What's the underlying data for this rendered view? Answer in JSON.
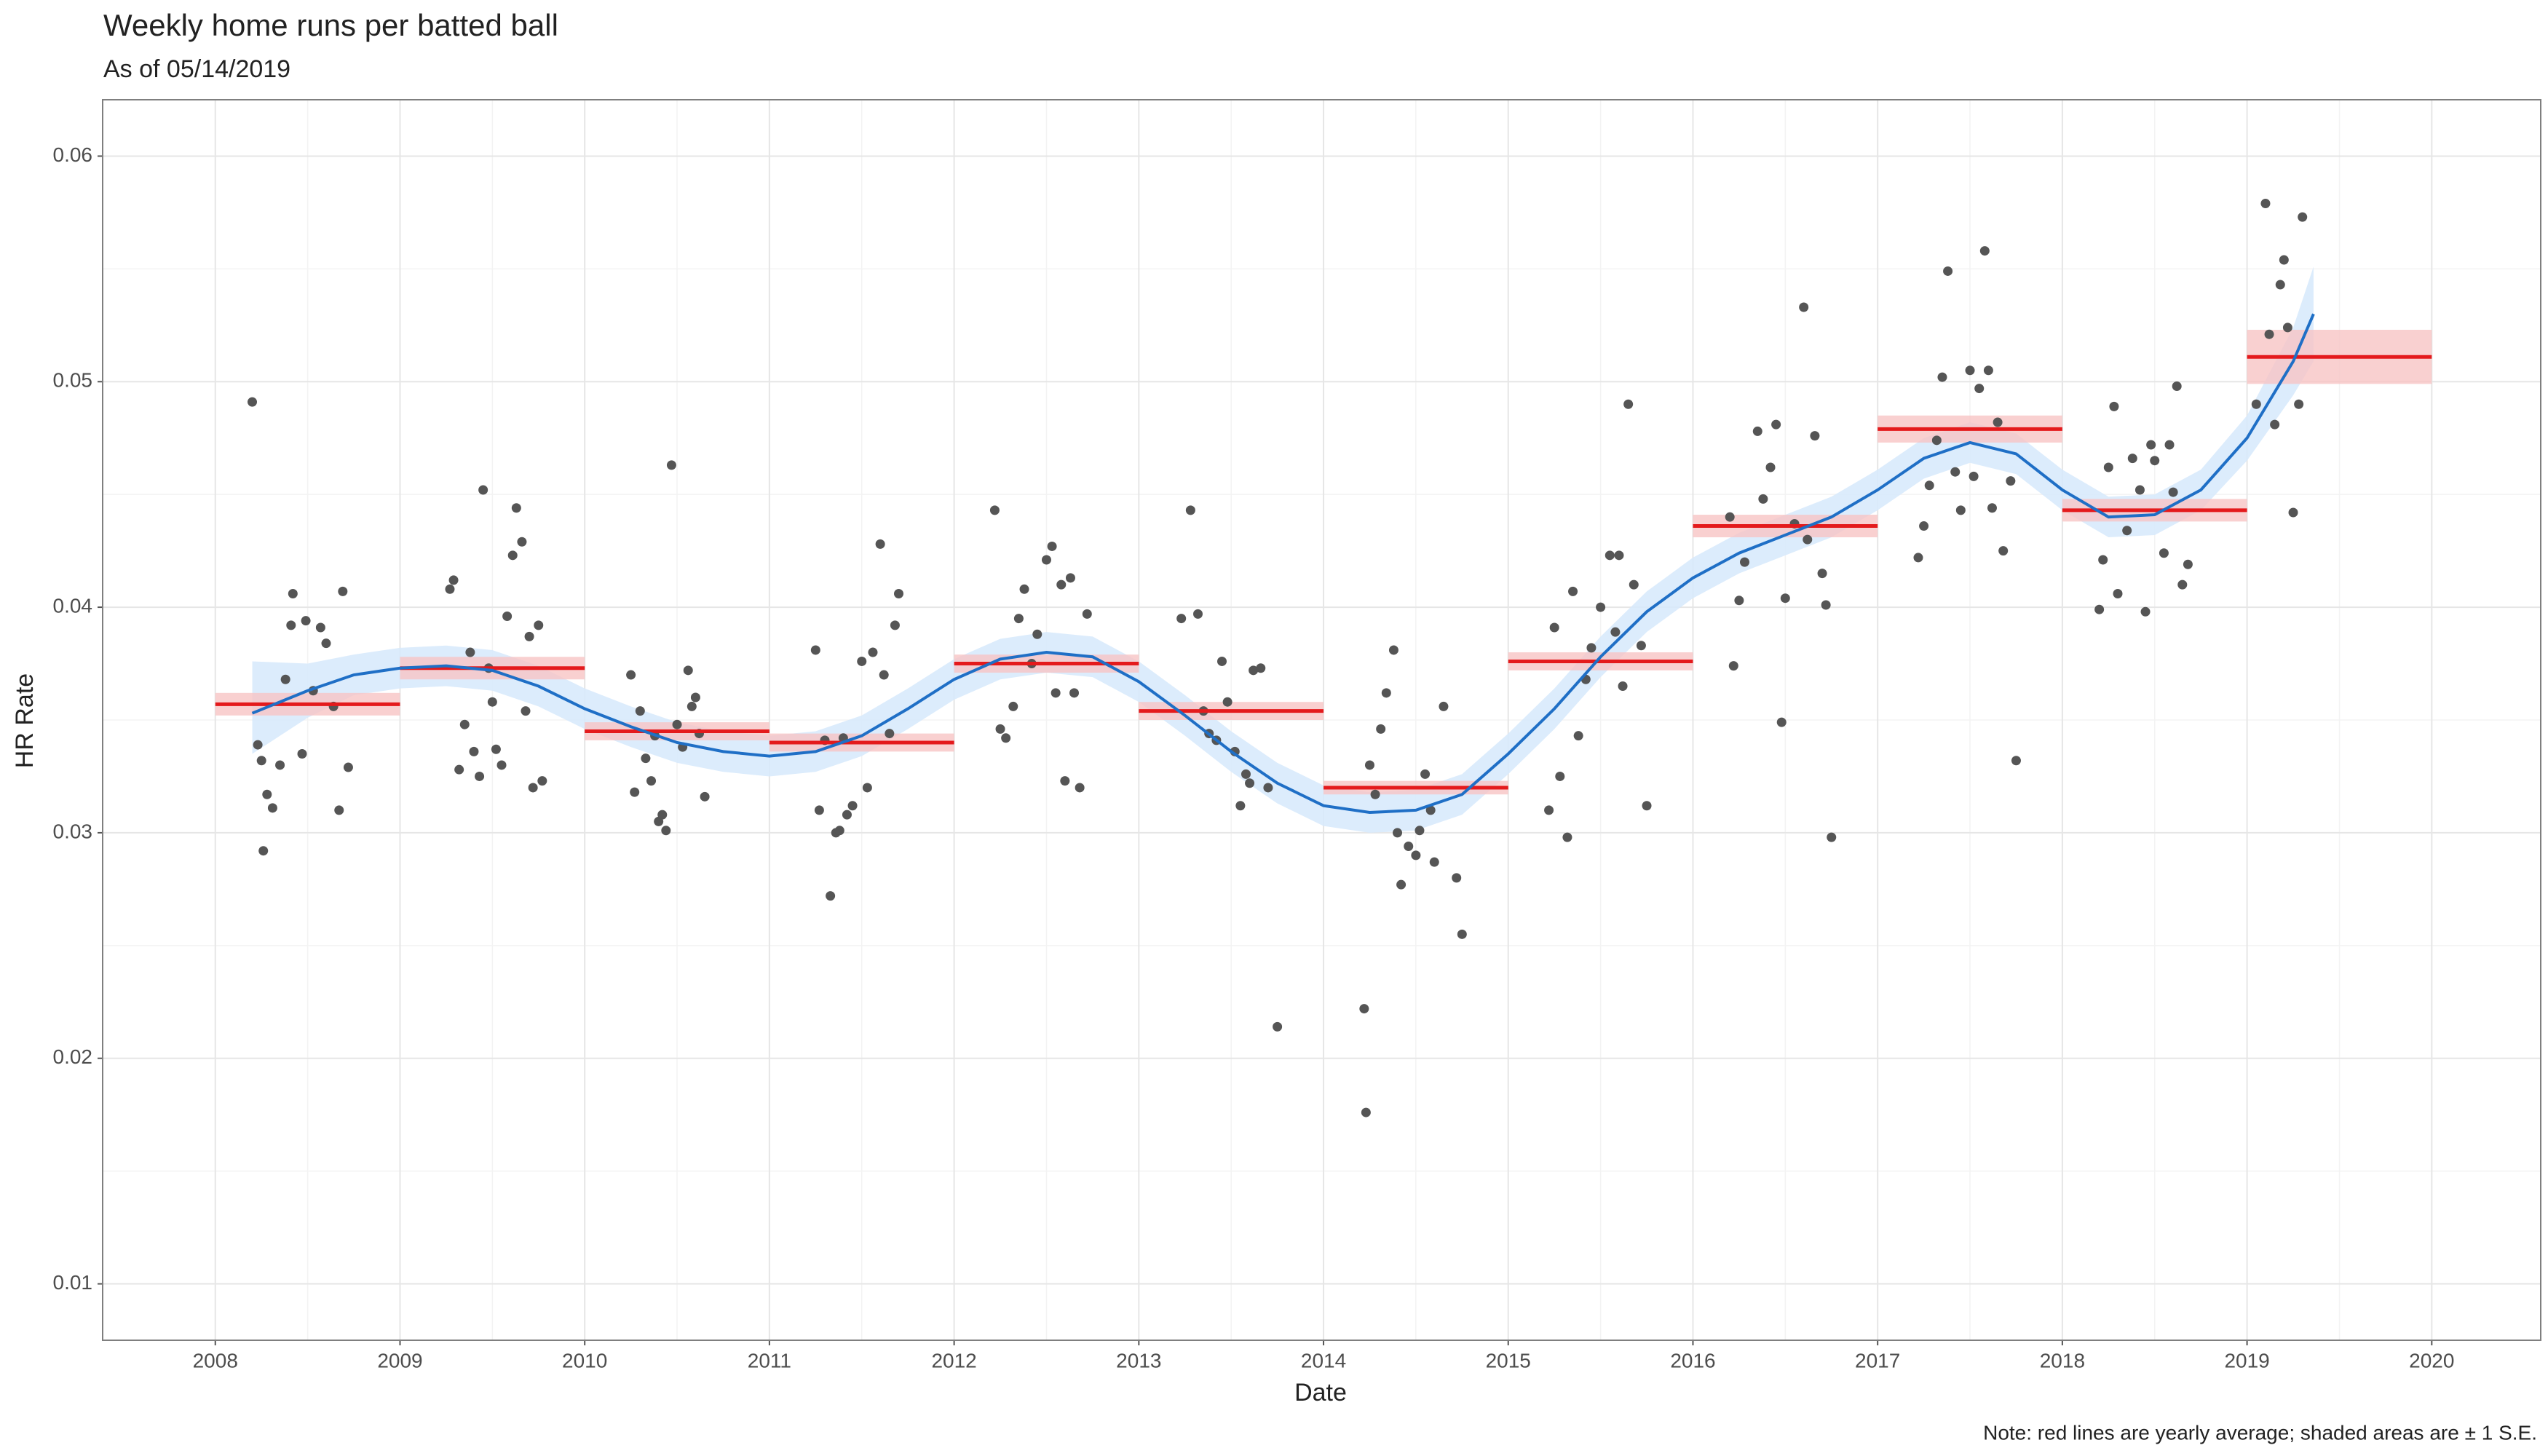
{
  "chart_data": {
    "type": "scatter",
    "title": "Weekly home runs per batted ball",
    "subtitle": "As of 05/14/2019",
    "x_label": "Date",
    "y_label": "HR Rate",
    "note": "Note: red lines are yearly average; shaded areas are ± 1 S.E.",
    "xlim": [
      2007.39,
      2020.59
    ],
    "ylim": [
      0.0075,
      0.0625
    ],
    "xticks": [
      2008,
      2009,
      2010,
      2011,
      2012,
      2013,
      2014,
      2015,
      2016,
      2017,
      2018,
      2019,
      2020
    ],
    "yticks": [
      0.01,
      0.02,
      0.03,
      0.04,
      0.05,
      0.06
    ],
    "grid": true,
    "points": {
      "color": "#555555",
      "x": [
        2008.2,
        2008.23,
        2008.25,
        2008.26,
        2008.28,
        2008.31,
        2008.35,
        2008.38,
        2008.41,
        2008.42,
        2008.47,
        2008.49,
        2008.53,
        2008.57,
        2008.6,
        2008.64,
        2008.67,
        2008.69,
        2008.72,
        2009.27,
        2009.29,
        2009.32,
        2009.35,
        2009.38,
        2009.4,
        2009.43,
        2009.45,
        2009.48,
        2009.5,
        2009.52,
        2009.55,
        2009.58,
        2009.61,
        2009.63,
        2009.66,
        2009.68,
        2009.7,
        2009.72,
        2009.75,
        2009.77,
        2010.25,
        2010.27,
        2010.3,
        2010.33,
        2010.36,
        2010.38,
        2010.4,
        2010.42,
        2010.44,
        2010.47,
        2010.5,
        2010.53,
        2010.56,
        2010.58,
        2010.6,
        2010.62,
        2010.65,
        2011.25,
        2011.27,
        2011.3,
        2011.33,
        2011.36,
        2011.38,
        2011.4,
        2011.42,
        2011.45,
        2011.5,
        2011.53,
        2011.56,
        2011.6,
        2011.62,
        2011.65,
        2011.68,
        2011.7,
        2012.22,
        2012.25,
        2012.28,
        2012.32,
        2012.35,
        2012.38,
        2012.42,
        2012.45,
        2012.5,
        2012.53,
        2012.55,
        2012.58,
        2012.6,
        2012.63,
        2012.65,
        2012.68,
        2012.72,
        2013.23,
        2013.28,
        2013.32,
        2013.35,
        2013.38,
        2013.42,
        2013.45,
        2013.48,
        2013.52,
        2013.55,
        2013.58,
        2013.6,
        2013.62,
        2013.66,
        2013.7,
        2013.75,
        2014.22,
        2014.23,
        2014.25,
        2014.28,
        2014.31,
        2014.34,
        2014.38,
        2014.4,
        2014.42,
        2014.46,
        2014.5,
        2014.52,
        2014.55,
        2014.58,
        2014.6,
        2014.65,
        2014.72,
        2014.75,
        2015.22,
        2015.25,
        2015.28,
        2015.32,
        2015.35,
        2015.38,
        2015.42,
        2015.45,
        2015.5,
        2015.55,
        2015.58,
        2015.6,
        2015.62,
        2015.65,
        2015.68,
        2015.72,
        2015.75,
        2016.2,
        2016.22,
        2016.25,
        2016.28,
        2016.35,
        2016.38,
        2016.42,
        2016.45,
        2016.48,
        2016.5,
        2016.55,
        2016.6,
        2016.62,
        2016.66,
        2016.7,
        2016.72,
        2016.75,
        2017.22,
        2017.25,
        2017.28,
        2017.32,
        2017.35,
        2017.38,
        2017.42,
        2017.45,
        2017.5,
        2017.52,
        2017.55,
        2017.58,
        2017.6,
        2017.62,
        2017.65,
        2017.68,
        2017.72,
        2017.75,
        2018.2,
        2018.22,
        2018.25,
        2018.28,
        2018.3,
        2018.35,
        2018.38,
        2018.42,
        2018.45,
        2018.48,
        2018.5,
        2018.55,
        2018.58,
        2018.6,
        2018.62,
        2018.65,
        2018.68,
        2019.05,
        2019.1,
        2019.12,
        2019.15,
        2019.18,
        2019.2,
        2019.22,
        2019.25,
        2019.28,
        2019.3
      ],
      "values": [
        0.0491,
        0.0339,
        0.0332,
        0.0292,
        0.0317,
        0.0311,
        0.033,
        0.0368,
        0.0392,
        0.0406,
        0.0335,
        0.0394,
        0.0363,
        0.0391,
        0.0384,
        0.0356,
        0.031,
        0.0407,
        0.0329,
        0.0408,
        0.0412,
        0.0328,
        0.0348,
        0.038,
        0.0336,
        0.0325,
        0.0452,
        0.0373,
        0.0358,
        0.0337,
        0.033,
        0.0396,
        0.0423,
        0.0444,
        0.0429,
        0.0354,
        0.0387,
        0.032,
        0.0392,
        0.0323,
        0.037,
        0.0318,
        0.0354,
        0.0333,
        0.0323,
        0.0343,
        0.0305,
        0.0308,
        0.0301,
        0.0463,
        0.0348,
        0.0338,
        0.0372,
        0.0356,
        0.036,
        0.0344,
        0.0316,
        0.0381,
        0.031,
        0.0341,
        0.0272,
        0.03,
        0.0301,
        0.0342,
        0.0308,
        0.0312,
        0.0376,
        0.032,
        0.038,
        0.0428,
        0.037,
        0.0344,
        0.0392,
        0.0406,
        0.0443,
        0.0346,
        0.0342,
        0.0356,
        0.0395,
        0.0408,
        0.0375,
        0.0388,
        0.0421,
        0.0427,
        0.0362,
        0.041,
        0.0323,
        0.0413,
        0.0362,
        0.032,
        0.0397,
        0.0395,
        0.0443,
        0.0397,
        0.0354,
        0.0344,
        0.0341,
        0.0376,
        0.0358,
        0.0336,
        0.0312,
        0.0326,
        0.0322,
        0.0372,
        0.0373,
        0.032,
        0.0214,
        0.0222,
        0.0176,
        0.033,
        0.0317,
        0.0346,
        0.0362,
        0.0381,
        0.03,
        0.0277,
        0.0294,
        0.029,
        0.0301,
        0.0326,
        0.031,
        0.0287,
        0.0356,
        0.028,
        0.0255,
        0.031,
        0.0391,
        0.0325,
        0.0298,
        0.0407,
        0.0343,
        0.0368,
        0.0382,
        0.04,
        0.0423,
        0.0389,
        0.0423,
        0.0365,
        0.049,
        0.041,
        0.0383,
        0.0312,
        0.044,
        0.0374,
        0.0403,
        0.042,
        0.0478,
        0.0448,
        0.0462,
        0.0481,
        0.0349,
        0.0404,
        0.0437,
        0.0533,
        0.043,
        0.0476,
        0.0415,
        0.0401,
        0.0298,
        0.0422,
        0.0436,
        0.0454,
        0.0474,
        0.0502,
        0.0549,
        0.046,
        0.0443,
        0.0505,
        0.0458,
        0.0497,
        0.0558,
        0.0505,
        0.0444,
        0.0482,
        0.0425,
        0.0456,
        0.0332,
        0.0399,
        0.0421,
        0.0462,
        0.0489,
        0.0406,
        0.0434,
        0.0466,
        0.0452,
        0.0398,
        0.0472,
        0.0465,
        0.0424,
        0.0472,
        0.0451,
        0.0498,
        0.041,
        0.0419,
        0.049,
        0.0579,
        0.0521,
        0.0481,
        0.0543,
        0.0554,
        0.0524,
        0.0442,
        0.049,
        0.0573
      ]
    },
    "yearly_average": {
      "color": "#e41a1c",
      "band_color": "#f8c4c4",
      "x": [
        2008,
        2009,
        2010,
        2011,
        2012,
        2013,
        2014,
        2015,
        2016,
        2017,
        2018,
        2019
      ],
      "x_end": [
        2009,
        2010,
        2011,
        2012,
        2013,
        2014,
        2015,
        2016,
        2017,
        2018,
        2019,
        2020
      ],
      "values": [
        0.0357,
        0.0373,
        0.0345,
        0.034,
        0.0375,
        0.0354,
        0.032,
        0.0376,
        0.0436,
        0.0479,
        0.0443,
        0.0511
      ],
      "se": [
        0.0005,
        0.0005,
        0.0004,
        0.0004,
        0.0004,
        0.0004,
        0.0003,
        0.0004,
        0.0005,
        0.0006,
        0.0005,
        0.0012
      ]
    },
    "smooth": {
      "color": "#1f6fc6",
      "band_color": "#d6e9fb",
      "x": [
        2008.2,
        2008.5,
        2008.75,
        2009,
        2009.25,
        2009.5,
        2009.75,
        2010,
        2010.25,
        2010.5,
        2010.75,
        2011,
        2011.25,
        2011.5,
        2011.75,
        2012,
        2012.25,
        2012.5,
        2012.75,
        2013,
        2013.25,
        2013.5,
        2013.75,
        2014,
        2014.25,
        2014.5,
        2014.75,
        2015,
        2015.25,
        2015.5,
        2015.75,
        2016,
        2016.25,
        2016.5,
        2016.75,
        2017,
        2017.25,
        2017.5,
        2017.75,
        2018,
        2018.25,
        2018.5,
        2018.75,
        2019,
        2019.25,
        2019.36
      ],
      "values": [
        0.0353,
        0.0363,
        0.037,
        0.0373,
        0.0374,
        0.0372,
        0.0365,
        0.0355,
        0.0347,
        0.034,
        0.0336,
        0.0334,
        0.0336,
        0.0343,
        0.0355,
        0.0368,
        0.0377,
        0.038,
        0.0378,
        0.0367,
        0.0352,
        0.0336,
        0.0322,
        0.0312,
        0.0309,
        0.031,
        0.0317,
        0.0335,
        0.0355,
        0.0378,
        0.0398,
        0.0413,
        0.0424,
        0.0432,
        0.044,
        0.0452,
        0.0466,
        0.0473,
        0.0468,
        0.0452,
        0.044,
        0.0441,
        0.0452,
        0.0475,
        0.0509,
        0.053
      ],
      "lower": [
        0.0335,
        0.0351,
        0.0361,
        0.0364,
        0.0365,
        0.0363,
        0.0356,
        0.0346,
        0.0338,
        0.0331,
        0.0327,
        0.0325,
        0.0327,
        0.0334,
        0.0346,
        0.0359,
        0.0368,
        0.0371,
        0.0369,
        0.0358,
        0.0343,
        0.0327,
        0.0313,
        0.0303,
        0.03,
        0.0301,
        0.0308,
        0.0326,
        0.0346,
        0.0369,
        0.0389,
        0.0404,
        0.0415,
        0.0423,
        0.0431,
        0.0443,
        0.0457,
        0.0464,
        0.0459,
        0.0443,
        0.0431,
        0.0432,
        0.0443,
        0.0465,
        0.0494,
        0.0509
      ],
      "upper": [
        0.0376,
        0.0375,
        0.0379,
        0.0382,
        0.0383,
        0.0381,
        0.0374,
        0.0364,
        0.0356,
        0.0349,
        0.0345,
        0.0343,
        0.0345,
        0.0352,
        0.0364,
        0.0377,
        0.0386,
        0.0389,
        0.0387,
        0.0376,
        0.0361,
        0.0345,
        0.0331,
        0.0321,
        0.0318,
        0.0319,
        0.0326,
        0.0344,
        0.0364,
        0.0387,
        0.0407,
        0.0422,
        0.0433,
        0.0441,
        0.0449,
        0.0461,
        0.0475,
        0.0482,
        0.0477,
        0.0461,
        0.0449,
        0.045,
        0.0461,
        0.0485,
        0.0524,
        0.0551
      ]
    }
  }
}
